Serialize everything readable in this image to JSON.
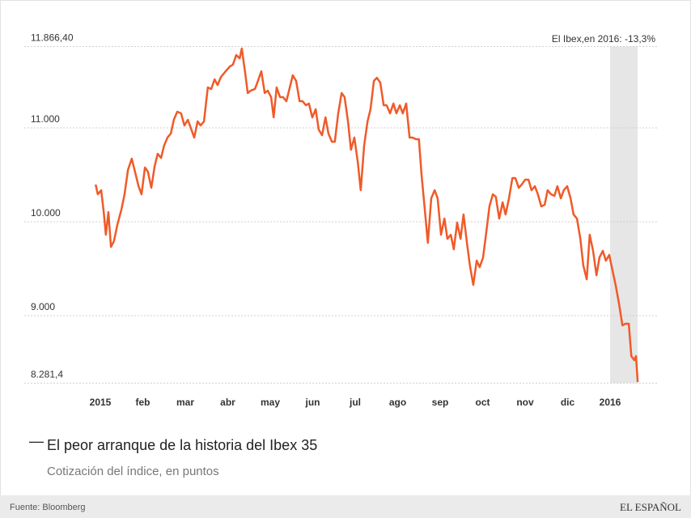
{
  "chart_data": {
    "type": "line",
    "series": [
      {
        "name": "El peor arranque de la historia del Ibex 35",
        "color": "#f05a28",
        "values": [
          10397,
          10293,
          10336,
          10103,
          9862,
          10103,
          9733,
          9793,
          9966,
          10138,
          10293,
          10552,
          10672,
          10526,
          10379,
          10293,
          10578,
          10534,
          10362,
          10595,
          10724,
          10681,
          10810,
          10897,
          10940,
          11086,
          11172,
          11155,
          11026,
          11086,
          11000,
          10897,
          11069,
          11026,
          11069,
          11431,
          11414,
          11517,
          11457,
          11543,
          11603,
          11655,
          11672,
          11776,
          11741,
          11845,
          11586,
          11371,
          11397,
          11414,
          11500,
          11603,
          11371,
          11397,
          11328,
          11112,
          11431,
          11328,
          11328,
          11284,
          11431,
          11560,
          11500,
          11284,
          11284,
          11241,
          11259,
          11112,
          11198,
          10983,
          10922,
          11112,
          10940,
          10853,
          10853,
          11155,
          11371,
          11328,
          11069,
          10767,
          10897,
          10638,
          10336,
          10810,
          11069,
          11198,
          11500,
          11534,
          11483,
          11241,
          11241,
          11155,
          11259,
          11155,
          11241,
          11155,
          11259,
          10897,
          10897,
          10879,
          10879,
          10509,
          10121,
          9776,
          10250,
          10336,
          10250,
          9862,
          10034,
          9819,
          9862,
          9707,
          9991,
          9819,
          10078,
          9776,
          9534,
          9328,
          9586,
          9517,
          9621,
          9905,
          10164,
          10293,
          10267,
          10034,
          10207,
          10078,
          10250,
          10466,
          10466,
          10362,
          10397,
          10448,
          10448,
          10336,
          10379,
          10293,
          10164,
          10181,
          10336,
          10293,
          10276,
          10379,
          10250,
          10336,
          10379,
          10250,
          10078,
          10034,
          9819,
          9534,
          9388,
          9862,
          9690,
          9431,
          9621,
          9690,
          9586,
          9647,
          9474,
          9328,
          9129,
          8897,
          8914,
          8914,
          8569,
          8526,
          8569,
          8293
        ]
      }
    ],
    "x": [
      -0.11,
      -0.06,
      0.02,
      0.08,
      0.13,
      0.19,
      0.25,
      0.32,
      0.4,
      0.5,
      0.57,
      0.65,
      0.74,
      0.82,
      0.9,
      0.97,
      1.05,
      1.12,
      1.2,
      1.28,
      1.35,
      1.43,
      1.5,
      1.58,
      1.66,
      1.73,
      1.81,
      1.9,
      1.98,
      2.06,
      2.13,
      2.21,
      2.29,
      2.36,
      2.44,
      2.53,
      2.61,
      2.69,
      2.76,
      2.84,
      2.95,
      3.05,
      3.12,
      3.2,
      3.28,
      3.33,
      3.41,
      3.47,
      3.54,
      3.64,
      3.71,
      3.79,
      3.87,
      3.94,
      4.02,
      4.08,
      4.15,
      4.23,
      4.3,
      4.38,
      4.46,
      4.53,
      4.61,
      4.69,
      4.76,
      4.84,
      4.91,
      4.99,
      5.07,
      5.14,
      5.22,
      5.3,
      5.37,
      5.45,
      5.52,
      5.6,
      5.68,
      5.75,
      5.83,
      5.9,
      5.98,
      6.06,
      6.13,
      6.21,
      6.29,
      6.36,
      6.44,
      6.51,
      6.59,
      6.67,
      6.74,
      6.82,
      6.9,
      6.97,
      7.05,
      7.12,
      7.2,
      7.28,
      7.35,
      7.43,
      7.5,
      7.56,
      7.64,
      7.71,
      7.79,
      7.87,
      7.94,
      8.02,
      8.1,
      8.17,
      8.25,
      8.32,
      8.4,
      8.48,
      8.55,
      8.63,
      8.7,
      8.78,
      8.86,
      8.93,
      9.01,
      9.09,
      9.16,
      9.24,
      9.31,
      9.39,
      9.47,
      9.54,
      9.62,
      9.7,
      9.77,
      9.85,
      9.92,
      10.0,
      10.08,
      10.15,
      10.23,
      10.3,
      10.38,
      10.46,
      10.53,
      10.61,
      10.69,
      10.76,
      10.84,
      10.91,
      10.99,
      11.07,
      11.14,
      11.22,
      11.3,
      11.37,
      11.45,
      11.52,
      11.6,
      11.68,
      11.75,
      11.83,
      11.9,
      11.98,
      12.06,
      12.13,
      12.21,
      12.29,
      12.36,
      12.44,
      12.5,
      12.57,
      12.61,
      12.65
    ],
    "xlim": [
      -0.4,
      12.8
    ],
    "xticks": [
      {
        "value": 0,
        "label": "2015"
      },
      {
        "value": 1,
        "label": "feb"
      },
      {
        "value": 2,
        "label": "mar"
      },
      {
        "value": 3,
        "label": "abr"
      },
      {
        "value": 4,
        "label": "may"
      },
      {
        "value": 5,
        "label": "jun"
      },
      {
        "value": 6,
        "label": "jul"
      },
      {
        "value": 7,
        "label": "ago"
      },
      {
        "value": 8,
        "label": "sep"
      },
      {
        "value": 9,
        "label": "oct"
      },
      {
        "value": 10,
        "label": "nov"
      },
      {
        "value": 11,
        "label": "dic"
      },
      {
        "value": 12,
        "label": "2016"
      }
    ],
    "ylim": [
      8281.4,
      11866.4
    ],
    "yticks": [
      {
        "value": 8281.4,
        "label": "8.281,4"
      },
      {
        "value": 9000,
        "label": "9.000"
      },
      {
        "value": 10000,
        "label": "10.000"
      },
      {
        "value": 11000,
        "label": "11.000"
      },
      {
        "value": 11866.4,
        "label": "11.866,40"
      }
    ],
    "grid": true,
    "highlight": {
      "range": [
        12,
        12.65
      ],
      "color": "#e6e6e6",
      "annotation": "El Ibex,en 2016: -13,3%"
    },
    "subtitle": "Cotización del índice, en puntos",
    "source": "Fuente: Bloomberg",
    "brand": "EL ESPAÑOL"
  }
}
